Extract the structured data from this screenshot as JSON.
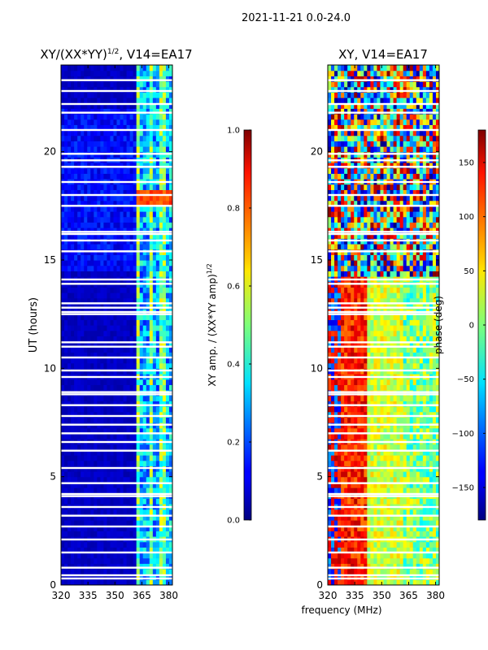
{
  "suptitle": "2021-11-21 0.0-24.0",
  "chart_data": [
    {
      "type": "heatmap",
      "title": "XY/(XX*YY)",
      "title_superscript": "1/2",
      "title_suffix": ", V14=EA17",
      "xlabel": "",
      "ylabel": "UT (hours)",
      "xlim": [
        320,
        382
      ],
      "ylim": [
        0,
        24
      ],
      "xticks": [
        320,
        335,
        350,
        365,
        380
      ],
      "yticks": [
        0,
        5,
        10,
        15,
        20
      ],
      "colorbar": {
        "label": "XY amp. / (XX*YY amp)",
        "label_superscript": "1/2",
        "range": [
          0.0,
          1.0
        ],
        "ticks": [
          "0.0",
          "0.2",
          "0.4",
          "0.6",
          "0.8",
          "1.0"
        ],
        "colormap": "jet"
      },
      "description_bands_mhz": {
        "low_background": [
          320,
          362
        ],
        "bright_channels": [
          362,
          382
        ]
      }
    },
    {
      "type": "heatmap",
      "title": "XY, V14=EA17",
      "xlabel": "frequency (MHz)",
      "ylabel": "",
      "xlim": [
        320,
        382
      ],
      "ylim": [
        0,
        24
      ],
      "xticks": [
        320,
        335,
        350,
        365,
        380
      ],
      "yticks": [
        0,
        5,
        10,
        15,
        20
      ],
      "colorbar": {
        "label": "phase (deg)",
        "range": [
          -180,
          180
        ],
        "ticks": [
          "-150",
          "-100",
          "-50",
          "0",
          "50",
          "100",
          "150"
        ],
        "colormap": "jet"
      }
    }
  ],
  "gap_rows_hours": [
    0.3,
    0.45,
    0.8,
    1.5,
    2.1,
    2.7,
    3.2,
    3.6,
    4.1,
    4.2,
    4.7,
    5.4,
    6.2,
    6.6,
    7.0,
    7.4,
    7.8,
    8.3,
    8.8,
    8.9,
    9.6,
    9.9,
    10.5,
    11.0,
    11.2,
    12.5,
    12.6,
    12.8,
    13.0,
    13.9,
    14.1,
    15.4,
    15.9,
    16.2,
    16.3,
    17.5,
    18.0,
    18.6,
    19.3,
    19.6,
    19.9,
    21.0,
    21.8,
    22.2,
    22.8,
    23.3
  ]
}
